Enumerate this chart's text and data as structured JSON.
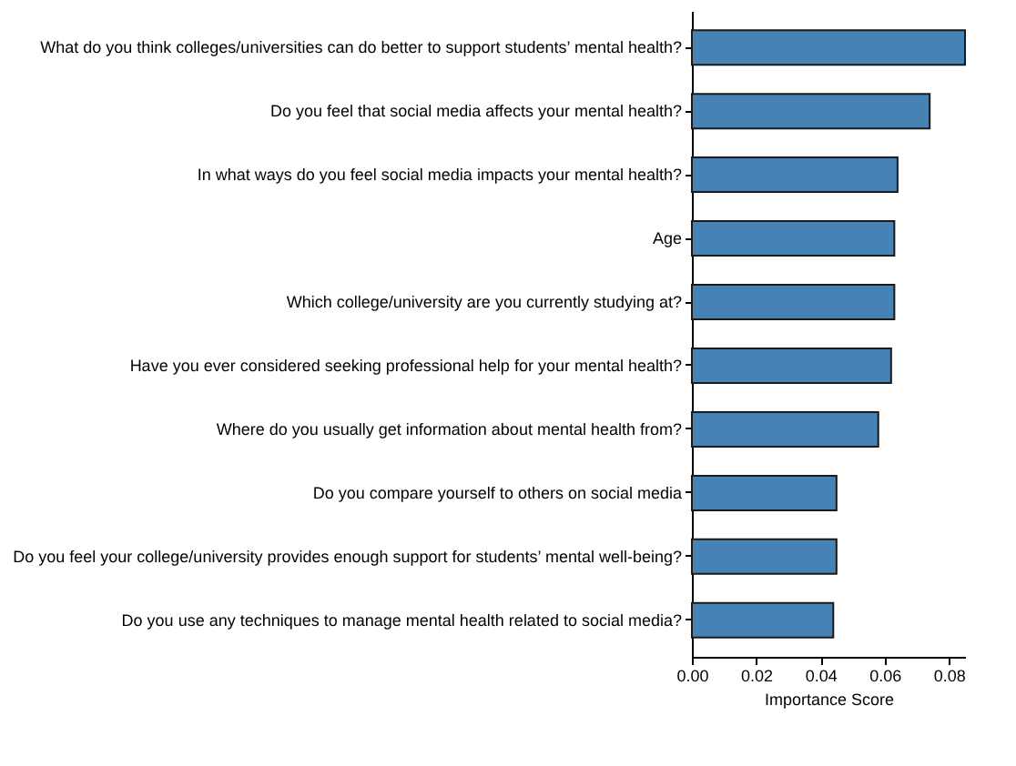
{
  "chart_data": {
    "type": "bar",
    "orientation": "horizontal",
    "xlabel": "Importance Score",
    "categories": [
      "What do you think colleges/universities can do better to support students’ mental health?",
      "Do you feel that social media affects your mental health?",
      "In what ways do you feel social media impacts your mental health?",
      "Age",
      "Which college/university are you currently studying at?",
      "Have you ever considered seeking professional help for your mental health?",
      "Where do you usually get information about mental health from?",
      "Do you compare yourself to others on social media",
      "Do you feel your college/university provides enough support for students’ mental well-being?",
      "Do you use any techniques to manage mental health related to social media?"
    ],
    "values": [
      0.085,
      0.074,
      0.064,
      0.063,
      0.063,
      0.062,
      0.058,
      0.045,
      0.045,
      0.044
    ],
    "color": "#4682b4",
    "xlim": [
      0,
      0.085
    ],
    "xticks": [
      {
        "value": 0,
        "label": "0.00"
      },
      {
        "value": 0.02,
        "label": "0.02"
      },
      {
        "value": 0.04,
        "label": "0.04"
      },
      {
        "value": 0.06,
        "label": "0.06"
      },
      {
        "value": 0.08,
        "label": "0.08"
      }
    ],
    "grid": false
  }
}
